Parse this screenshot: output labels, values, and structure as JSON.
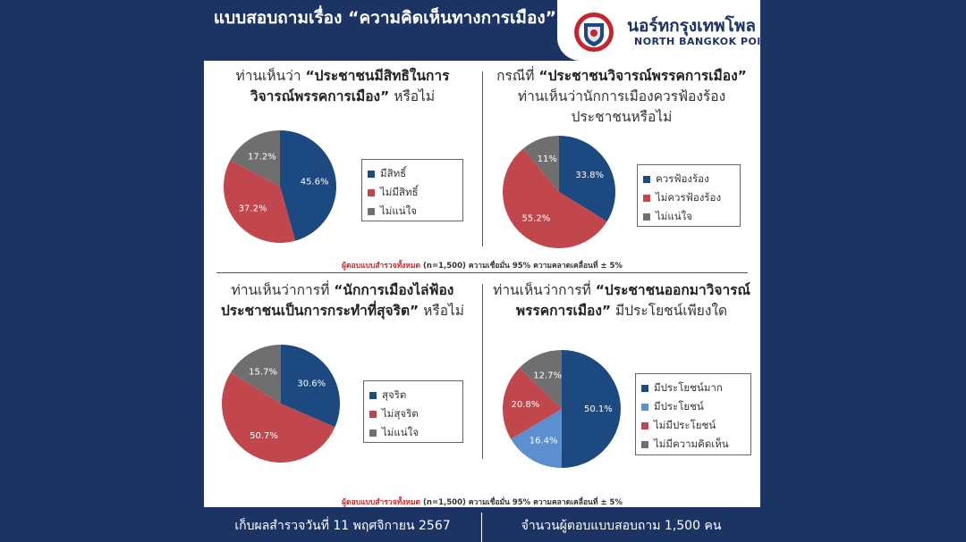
{
  "header": {
    "title": "แบบสอบถามเรื่อง “ความคิดเห็นทางการเมือง”",
    "brand_th": "นอร์ทกรุงเทพโพล",
    "brand_en": "NORTH BANGKOK POll"
  },
  "note": {
    "red": "ผู้ตอบแบบสำรวจทั้งหมด",
    "rest": "(n=1,500) ความเชื่อมั่น 95% ความคลาดเคลื่อนที่ ± 5%"
  },
  "footer": {
    "left": "เก็บผลสำรวจวันที่ 11 พฤศจิกายน 2567",
    "right": "จำนวนผู้ตอบแบบสอบถาม 1,500 คน"
  },
  "panels": [
    {
      "q_pre": "ท่านเห็นว่า ",
      "q_bold": "“ประชาชนมีสิทธิในการวิจารณ์พรรคการเมือง”",
      "q_post": " หรือไม่"
    },
    {
      "q_pre": "กรณีที่ ",
      "q_bold": "“ประชาชนวิจารณ์พรรคการเมือง”",
      "q_post": " ท่านเห็นว่านักการเมืองควรฟ้องร้องประชาชนหรือไม่"
    },
    {
      "q_pre": "ท่านเห็นว่าการที่ ",
      "q_bold": "“นักการเมืองไล่ฟ้องประชาชนเป็นการกระทำที่สุจริต”",
      "q_post": " หรือไม่"
    },
    {
      "q_pre": "ท่านเห็นว่าการที่ ",
      "q_bold": "“ประชาชนออกมาวิจารณ์พรรคการเมือง”",
      "q_post": " มีประโยชน์เพียงใด"
    }
  ],
  "chart_data": [
    {
      "type": "pie",
      "categories": [
        "มีสิทธิ์",
        "ไม่มีสิทธิ์",
        "ไม่แน่ใจ"
      ],
      "values": [
        45.6,
        37.2,
        17.2
      ],
      "labels": [
        "45.6%",
        "37.2%",
        "17.2%"
      ],
      "colors": [
        "#1c4a80",
        "#c2474d",
        "#6f6f6f"
      ]
    },
    {
      "type": "pie",
      "categories": [
        "ควรฟ้องร้อง",
        "ไม่ควรฟ้องร้อง",
        "ไม่แน่ใจ"
      ],
      "values": [
        33.8,
        55.2,
        11
      ],
      "labels": [
        "33.8%",
        "55.2%",
        "11%"
      ],
      "colors": [
        "#1c4a80",
        "#c2474d",
        "#6f6f6f"
      ]
    },
    {
      "type": "pie",
      "categories": [
        "สุจริต",
        "ไม่สุจริต",
        "ไม่แน่ใจ"
      ],
      "values": [
        30.6,
        50.7,
        15.7
      ],
      "labels": [
        "30.6%",
        "50.7%",
        "15.7%"
      ],
      "colors": [
        "#1c4a80",
        "#c2474d",
        "#6f6f6f"
      ]
    },
    {
      "type": "pie",
      "categories": [
        "มีประโยชน์มาก",
        "มีประโยชน์",
        "ไม่มีประโยชน์",
        "ไม่มีความคิดเห็น"
      ],
      "values": [
        50.1,
        16.4,
        20.8,
        12.7
      ],
      "labels": [
        "50.1%",
        "16.4%",
        "20.8%",
        "12.7%"
      ],
      "colors": [
        "#1c4a80",
        "#5b8fd0",
        "#c2474d",
        "#6f6f6f"
      ]
    }
  ]
}
